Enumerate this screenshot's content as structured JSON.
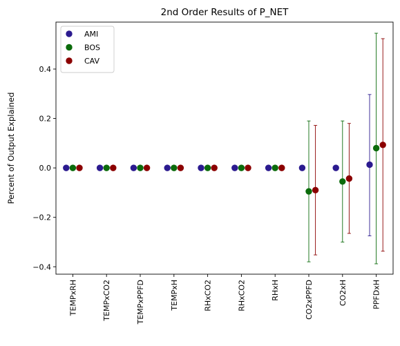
{
  "chart_data": {
    "type": "scatter",
    "title": "2nd Order Results of P_NET",
    "xlabel": "",
    "ylabel": "Percent of Output Explained",
    "ylim": [
      -0.43,
      0.59
    ],
    "yticks": [
      -0.4,
      -0.2,
      0.0,
      0.2,
      0.4
    ],
    "ytick_labels": [
      "−0.4",
      "−0.2",
      "0.0",
      "0.2",
      "0.4"
    ],
    "categories": [
      "TEMPxRH",
      "TEMPxCO2",
      "TEMPxPPFD",
      "TEMPxH",
      "RHxCO2",
      "RHxCO2",
      "RHxH",
      "CO2xPPFD",
      "CO2xH",
      "PPFDxH"
    ],
    "legend_position": "top-left",
    "grid": false,
    "series": [
      {
        "name": "AMI",
        "color": "#2b1a8f",
        "values": [
          0,
          0,
          0,
          0,
          0,
          0,
          0,
          0,
          0,
          0.013
        ],
        "err_low": [
          null,
          null,
          null,
          null,
          null,
          null,
          null,
          null,
          null,
          -0.275
        ],
        "err_high": [
          null,
          null,
          null,
          null,
          null,
          null,
          null,
          null,
          null,
          0.297
        ]
      },
      {
        "name": "BOS",
        "color": "#0b6b0b",
        "values": [
          0,
          0,
          0,
          0,
          0,
          0,
          0,
          -0.095,
          -0.055,
          0.08
        ],
        "err_low": [
          null,
          null,
          null,
          null,
          null,
          null,
          null,
          -0.38,
          -0.3,
          -0.388
        ],
        "err_high": [
          null,
          null,
          null,
          null,
          null,
          null,
          null,
          0.19,
          0.19,
          0.545
        ]
      },
      {
        "name": "CAV",
        "color": "#8b0000",
        "values": [
          0,
          0,
          0,
          0,
          0,
          0,
          0,
          -0.09,
          -0.043,
          0.093
        ],
        "err_low": [
          null,
          null,
          null,
          null,
          null,
          null,
          null,
          -0.352,
          -0.265,
          -0.337
        ],
        "err_high": [
          null,
          null,
          null,
          null,
          null,
          null,
          null,
          0.172,
          0.18,
          0.523
        ]
      }
    ]
  }
}
